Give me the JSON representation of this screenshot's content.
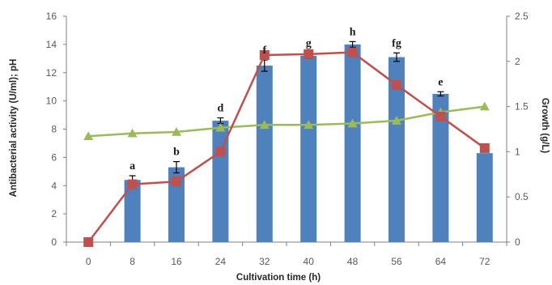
{
  "chart_data": {
    "type": "bar",
    "x": [
      "0",
      "8",
      "16",
      "24",
      "32",
      "40",
      "48",
      "56",
      "64",
      "72"
    ],
    "xlabel": "Cultivation time (h)",
    "ylabel": "Antibacterial activity (U/ml); pH",
    "y2label": "Growth (g/L)",
    "ylim": [
      0,
      16
    ],
    "y2lim": [
      0,
      2.5
    ],
    "yticks": [
      "0",
      "2",
      "4",
      "6",
      "8",
      "10",
      "12",
      "14",
      "16"
    ],
    "y2ticks": [
      "0",
      "0.5",
      "1",
      "1.5",
      "2",
      "2.5"
    ],
    "grid": false,
    "series": [
      {
        "type": "bar",
        "axis": "left",
        "values": [
          null,
          4.4,
          5.3,
          8.6,
          12.5,
          13.2,
          14.0,
          13.1,
          10.5,
          6.3
        ],
        "errors": [
          0,
          0.3,
          0.4,
          0.2,
          0.4,
          0.2,
          0.2,
          0.3,
          0.15,
          0
        ],
        "labels": [
          "",
          "a",
          "b",
          "d",
          "f",
          "g",
          "h",
          "fg",
          "e",
          ""
        ],
        "color": "#4f81bd"
      },
      {
        "type": "line",
        "axis": "right",
        "marker": "square",
        "values": [
          0,
          0.64,
          0.67,
          1.0,
          2.07,
          2.08,
          2.1,
          1.74,
          1.39,
          1.04
        ],
        "color": "#c0504d"
      },
      {
        "type": "line",
        "axis": "left",
        "marker": "triangle",
        "values": [
          7.5,
          7.7,
          7.8,
          8.1,
          8.3,
          8.3,
          8.4,
          8.6,
          9.2,
          9.6
        ],
        "color": "#9bbb59"
      }
    ]
  }
}
